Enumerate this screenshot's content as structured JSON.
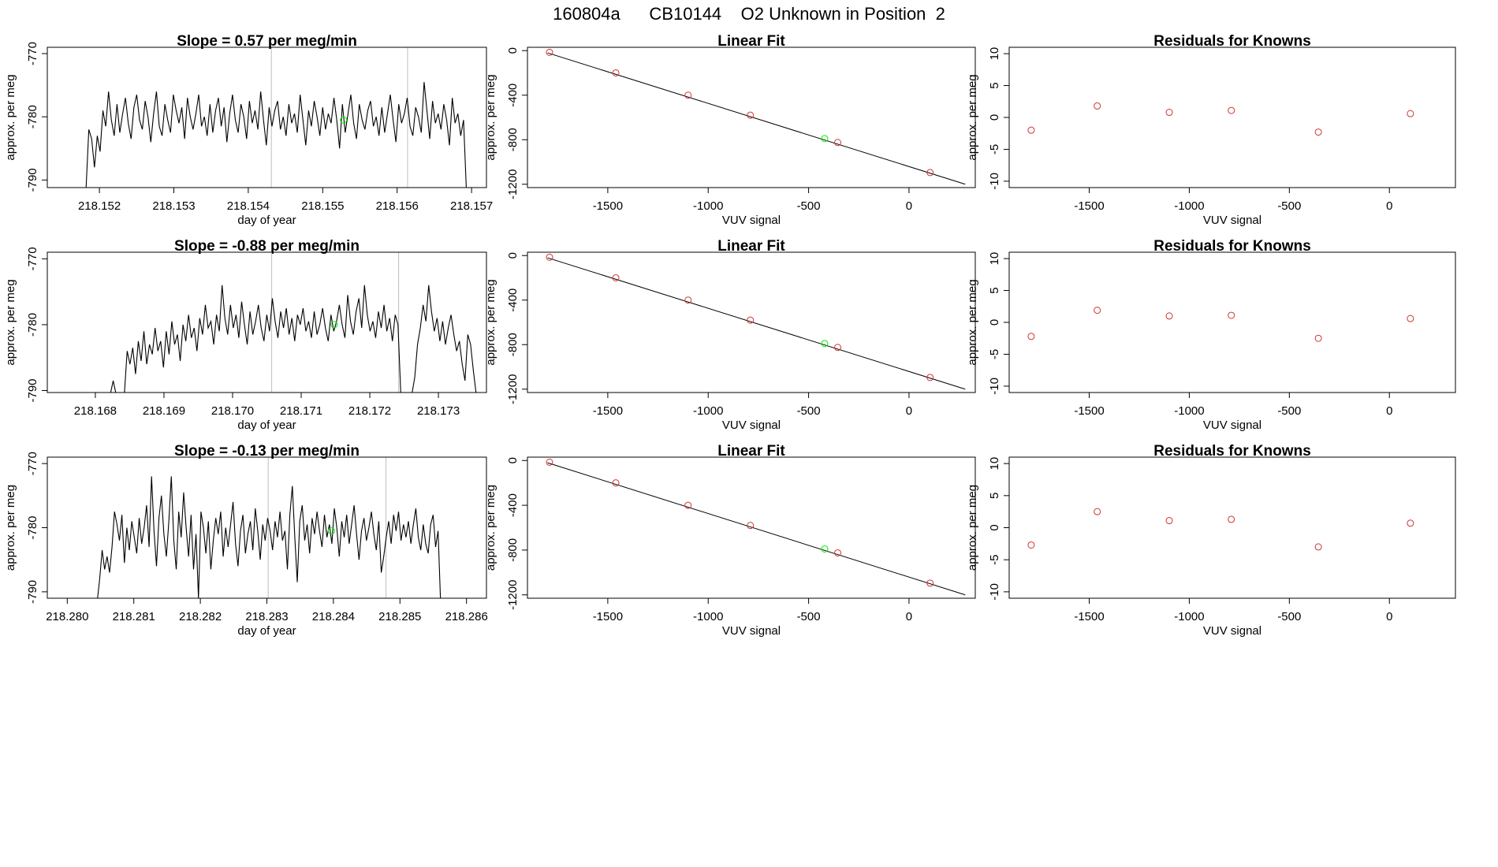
{
  "page_title": "160804a      CB10144    O2 Unknown in Position  2",
  "colors": {
    "line": "#000000",
    "known_point": "#cd3333",
    "unknown_point": "#00ee00",
    "marker_line": "#bebebe",
    "frame": "#000000"
  },
  "chart_data": [
    {
      "type": "line",
      "row": 1,
      "panel": "timeseries",
      "title": "Slope =  0.57  per meg/min",
      "xlabel": "day of year",
      "ylabel": "approx. per meg",
      "xlim": [
        218.1513,
        218.1572
      ],
      "ylim": [
        -791.2,
        -769
      ],
      "xticks": [
        "218.152",
        "218.153",
        "218.154",
        "218.155",
        "218.156",
        "218.157"
      ],
      "yticks": [
        "-770",
        "-780",
        "-790"
      ],
      "series": [
        {
          "x_start": 218.15182,
          "x_end": 218.15693,
          "values": [
            -791.5,
            -782.0,
            -783.5,
            -788.0,
            -783.0,
            -785.5,
            -779.0,
            -781.5,
            -776.0,
            -780.5,
            -783.0,
            -778.0,
            -782.5,
            -779.5,
            -777.0,
            -781.0,
            -783.5,
            -778.5,
            -776.5,
            -780.5,
            -782.0,
            -777.5,
            -780.0,
            -784.0,
            -779.5,
            -776.0,
            -781.5,
            -783.0,
            -778.0,
            -780.5,
            -782.5,
            -776.5,
            -779.0,
            -781.0,
            -778.5,
            -783.5,
            -777.0,
            -780.0,
            -782.0,
            -779.5,
            -776.5,
            -781.5,
            -780.0,
            -783.0,
            -778.0,
            -782.5,
            -779.0,
            -777.0,
            -781.5,
            -778.5,
            -784.0,
            -779.5,
            -776.5,
            -780.5,
            -782.5,
            -778.0,
            -780.0,
            -783.5,
            -777.5,
            -781.0,
            -779.0,
            -782.0,
            -776.0,
            -780.5,
            -784.5,
            -778.5,
            -781.5,
            -779.0,
            -777.5,
            -782.0,
            -780.0,
            -783.0,
            -778.0,
            -781.0,
            -779.5,
            -782.5,
            -776.5,
            -780.5,
            -784.5,
            -779.0,
            -781.5,
            -777.5,
            -780.0,
            -783.0,
            -778.5,
            -782.0,
            -779.5,
            -781.0,
            -777.0,
            -780.5,
            -785.0,
            -778.0,
            -782.5,
            -779.5,
            -776.5,
            -781.0,
            -783.5,
            -778.0,
            -780.5,
            -782.0,
            -779.0,
            -777.5,
            -781.5,
            -780.0,
            -783.0,
            -778.5,
            -782.5,
            -779.5,
            -776.5,
            -780.5,
            -784.0,
            -778.0,
            -781.0,
            -779.5,
            -777.0,
            -781.5,
            -783.0,
            -778.5,
            -780.0,
            -782.5,
            -774.5,
            -779.0,
            -783.5,
            -777.5,
            -781.0,
            -779.5,
            -782.0,
            -778.0,
            -780.5,
            -784.5,
            -777.0,
            -781.0,
            -779.5,
            -783.0,
            -780.5,
            -791.5
          ]
        }
      ],
      "unknown_point": {
        "x": 218.15528,
        "y": -780.5
      },
      "marker_lines_x": [
        218.15431,
        218.15614
      ]
    },
    {
      "type": "scatter",
      "row": 1,
      "panel": "fit",
      "title": "Linear Fit",
      "xlabel": "VUV signal",
      "ylabel": "approx. per meg",
      "xlim": [
        -1900,
        330
      ],
      "ylim": [
        -1230,
        30
      ],
      "xticks": [
        "-1500",
        "-1000",
        "-500",
        "0"
      ],
      "yticks": [
        "0",
        "-400",
        "-800",
        "-1200"
      ],
      "fit_line": {
        "x": [
          -1800,
          280
        ],
        "y": [
          -20,
          -1200
        ]
      },
      "knowns": [
        {
          "x": -1790,
          "y": -15
        },
        {
          "x": -1460,
          "y": -200
        },
        {
          "x": -1100,
          "y": -400
        },
        {
          "x": -790,
          "y": -580
        },
        {
          "x": -355,
          "y": -825
        },
        {
          "x": 105,
          "y": -1095
        }
      ],
      "unknown_point": {
        "x": -420,
        "y": -790
      }
    },
    {
      "type": "scatter",
      "row": 1,
      "panel": "residuals",
      "title": "Residuals for Knowns",
      "xlabel": "VUV signal",
      "ylabel": "approx. per meg",
      "xlim": [
        -1900,
        330
      ],
      "ylim": [
        -11,
        11
      ],
      "xticks": [
        "-1500",
        "-1000",
        "-500",
        "0"
      ],
      "yticks": [
        "10",
        "5",
        "0",
        "-5",
        "-10"
      ],
      "knowns": [
        {
          "x": -1790,
          "y": -2.0
        },
        {
          "x": -1460,
          "y": 1.8
        },
        {
          "x": -1100,
          "y": 0.8
        },
        {
          "x": -790,
          "y": 1.1
        },
        {
          "x": -355,
          "y": -2.3
        },
        {
          "x": 105,
          "y": 0.6
        }
      ]
    },
    {
      "type": "line",
      "row": 2,
      "panel": "timeseries",
      "title": "Slope =  -0.88  per meg/min",
      "xlabel": "day of year",
      "ylabel": "approx. per meg",
      "xlim": [
        218.1673,
        218.1737
      ],
      "ylim": [
        -790.3,
        -769
      ],
      "xticks": [
        "218.168",
        "218.169",
        "218.170",
        "218.171",
        "218.172",
        "218.173"
      ],
      "yticks": [
        "-770",
        "-780",
        "-790"
      ],
      "series": [
        {
          "x_start": 218.16765,
          "x_end": 218.17355,
          "values": [
            -790.5,
            -790.5,
            -790.5,
            -790.5,
            -790.5,
            -790.5,
            -790.5,
            -790.5,
            -790.5,
            -790.5,
            -790.5,
            -790.5,
            -790.5,
            -790.5,
            -790.5,
            -788.5,
            -790.5,
            -790.5,
            -790.5,
            -790.5,
            -784.0,
            -786.0,
            -783.5,
            -787.5,
            -782.5,
            -785.5,
            -781.0,
            -786.0,
            -783.0,
            -784.5,
            -780.5,
            -784.0,
            -782.5,
            -786.5,
            -781.0,
            -784.5,
            -779.5,
            -783.0,
            -781.5,
            -785.5,
            -780.0,
            -782.5,
            -778.5,
            -782.0,
            -780.5,
            -784.0,
            -779.0,
            -781.5,
            -777.0,
            -780.5,
            -779.5,
            -783.0,
            -778.5,
            -781.0,
            -774.0,
            -779.0,
            -781.5,
            -777.0,
            -780.5,
            -778.5,
            -782.0,
            -776.5,
            -780.0,
            -783.0,
            -778.0,
            -781.5,
            -779.5,
            -777.0,
            -780.5,
            -782.5,
            -778.5,
            -781.0,
            -776.0,
            -779.5,
            -782.0,
            -778.0,
            -780.5,
            -777.5,
            -781.5,
            -779.0,
            -782.5,
            -778.5,
            -780.0,
            -777.5,
            -781.0,
            -779.5,
            -782.0,
            -778.0,
            -781.5,
            -780.0,
            -777.5,
            -780.5,
            -782.5,
            -778.5,
            -781.0,
            -779.5,
            -777.0,
            -780.0,
            -782.0,
            -775.5,
            -779.5,
            -781.5,
            -778.0,
            -776.0,
            -780.5,
            -774.0,
            -778.5,
            -781.0,
            -779.5,
            -782.0,
            -778.0,
            -780.5,
            -777.0,
            -781.0,
            -779.0,
            -782.5,
            -778.5,
            -780.0,
            -790.5,
            -790.5,
            -790.5,
            -790.5,
            -790.5,
            -788.0,
            -783.0,
            -780.5,
            -777.0,
            -779.5,
            -774.0,
            -778.0,
            -781.0,
            -779.0,
            -782.5,
            -779.5,
            -783.0,
            -780.5,
            -778.5,
            -781.5,
            -784.0,
            -782.5,
            -786.0,
            -788.5,
            -781.5,
            -783.0,
            -787.0,
            -790.5
          ]
        }
      ],
      "unknown_point": {
        "x": 218.17148,
        "y": -780.0
      },
      "marker_lines_x": [
        218.17057,
        218.17242
      ]
    },
    {
      "type": "scatter",
      "row": 2,
      "panel": "fit",
      "title": "Linear Fit",
      "xlabel": "VUV signal",
      "ylabel": "approx. per meg",
      "xlim": [
        -1900,
        330
      ],
      "ylim": [
        -1230,
        30
      ],
      "xticks": [
        "-1500",
        "-1000",
        "-500",
        "0"
      ],
      "yticks": [
        "0",
        "-400",
        "-800",
        "-1200"
      ],
      "fit_line": {
        "x": [
          -1800,
          280
        ],
        "y": [
          -20,
          -1200
        ]
      },
      "knowns": [
        {
          "x": -1790,
          "y": -15
        },
        {
          "x": -1460,
          "y": -200
        },
        {
          "x": -1100,
          "y": -400
        },
        {
          "x": -790,
          "y": -580
        },
        {
          "x": -355,
          "y": -825
        },
        {
          "x": 105,
          "y": -1095
        }
      ],
      "unknown_point": {
        "x": -420,
        "y": -790
      }
    },
    {
      "type": "scatter",
      "row": 2,
      "panel": "residuals",
      "title": "Residuals for Knowns",
      "xlabel": "VUV signal",
      "ylabel": "approx. per meg",
      "xlim": [
        -1900,
        330
      ],
      "ylim": [
        -11,
        11
      ],
      "xticks": [
        "-1500",
        "-1000",
        "-500",
        "0"
      ],
      "yticks": [
        "10",
        "5",
        "0",
        "-5",
        "-10"
      ],
      "knowns": [
        {
          "x": -1790,
          "y": -2.2
        },
        {
          "x": -1460,
          "y": 1.9
        },
        {
          "x": -1100,
          "y": 1.0
        },
        {
          "x": -790,
          "y": 1.1
        },
        {
          "x": -355,
          "y": -2.5
        },
        {
          "x": 105,
          "y": 0.6
        }
      ]
    },
    {
      "type": "line",
      "row": 3,
      "panel": "timeseries",
      "title": "Slope =  -0.13  per meg/min",
      "xlabel": "day of year",
      "ylabel": "approx. per meg",
      "xlim": [
        218.2797,
        218.2863
      ],
      "ylim": [
        -791,
        -769
      ],
      "xticks": [
        "218.280",
        "218.281",
        "218.282",
        "218.283",
        "218.284",
        "218.285",
        "218.286"
      ],
      "yticks": [
        "-770",
        "-780",
        "-790"
      ],
      "series": [
        {
          "x_start": 218.28045,
          "x_end": 218.28561,
          "values": [
            -791.5,
            -788.0,
            -783.5,
            -786.5,
            -784.5,
            -787.0,
            -783.0,
            -777.5,
            -779.5,
            -782.0,
            -778.0,
            -785.5,
            -780.0,
            -783.5,
            -779.0,
            -781.5,
            -784.0,
            -778.5,
            -782.5,
            -780.0,
            -776.5,
            -783.0,
            -772.0,
            -780.5,
            -786.0,
            -778.5,
            -775.0,
            -781.0,
            -784.5,
            -779.0,
            -772.0,
            -782.0,
            -786.5,
            -777.5,
            -781.5,
            -774.5,
            -780.0,
            -784.5,
            -778.0,
            -786.5,
            -781.0,
            -791.0,
            -777.5,
            -780.0,
            -784.0,
            -779.0,
            -786.5,
            -782.0,
            -778.5,
            -781.0,
            -777.5,
            -784.5,
            -780.0,
            -783.0,
            -779.5,
            -776.0,
            -782.5,
            -786.0,
            -780.5,
            -778.0,
            -784.0,
            -781.0,
            -779.0,
            -783.5,
            -777.0,
            -780.5,
            -785.0,
            -779.5,
            -782.0,
            -778.5,
            -780.5,
            -783.5,
            -779.0,
            -781.5,
            -777.5,
            -782.0,
            -780.5,
            -786.5,
            -778.0,
            -773.5,
            -781.5,
            -788.5,
            -779.0,
            -776.5,
            -782.0,
            -779.5,
            -784.0,
            -778.5,
            -781.0,
            -777.5,
            -780.5,
            -783.0,
            -778.0,
            -781.5,
            -779.5,
            -782.5,
            -777.0,
            -780.0,
            -784.5,
            -779.0,
            -781.5,
            -778.0,
            -782.5,
            -779.5,
            -776.5,
            -781.0,
            -785.0,
            -780.5,
            -778.5,
            -782.0,
            -780.0,
            -777.5,
            -781.0,
            -783.5,
            -779.0,
            -787.0,
            -784.5,
            -781.5,
            -779.0,
            -782.5,
            -778.0,
            -780.5,
            -777.5,
            -782.0,
            -779.5,
            -781.5,
            -779.0,
            -782.5,
            -779.5,
            -777.0,
            -781.5,
            -783.5,
            -779.5,
            -782.5,
            -784.0,
            -779.5,
            -778.0,
            -783.0,
            -780.5,
            -791.5
          ]
        }
      ],
      "unknown_point": {
        "x": 218.28397,
        "y": -780.5
      },
      "marker_lines_x": [
        218.28302,
        218.28479
      ]
    },
    {
      "type": "scatter",
      "row": 3,
      "panel": "fit",
      "title": "Linear Fit",
      "xlabel": "VUV signal",
      "ylabel": "approx. per meg",
      "xlim": [
        -1900,
        330
      ],
      "ylim": [
        -1230,
        30
      ],
      "xticks": [
        "-1500",
        "-1000",
        "-500",
        "0"
      ],
      "yticks": [
        "0",
        "-400",
        "-800",
        "-1200"
      ],
      "fit_line": {
        "x": [
          -1800,
          280
        ],
        "y": [
          -20,
          -1200
        ]
      },
      "knowns": [
        {
          "x": -1790,
          "y": -15
        },
        {
          "x": -1460,
          "y": -200
        },
        {
          "x": -1100,
          "y": -400
        },
        {
          "x": -790,
          "y": -580
        },
        {
          "x": -355,
          "y": -825
        },
        {
          "x": 105,
          "y": -1095
        }
      ],
      "unknown_point": {
        "x": -420,
        "y": -790
      }
    },
    {
      "type": "scatter",
      "row": 3,
      "panel": "residuals",
      "title": "Residuals for Knowns",
      "xlabel": "VUV signal",
      "ylabel": "approx. per meg",
      "xlim": [
        -1900,
        330
      ],
      "ylim": [
        -11,
        11
      ],
      "xticks": [
        "-1500",
        "-1000",
        "-500",
        "0"
      ],
      "yticks": [
        "10",
        "5",
        "0",
        "-5",
        "-10"
      ],
      "knowns": [
        {
          "x": -1790,
          "y": -2.7
        },
        {
          "x": -1460,
          "y": 2.5
        },
        {
          "x": -1100,
          "y": 1.1
        },
        {
          "x": -790,
          "y": 1.3
        },
        {
          "x": -355,
          "y": -3.0
        },
        {
          "x": 105,
          "y": 0.7
        }
      ]
    }
  ]
}
